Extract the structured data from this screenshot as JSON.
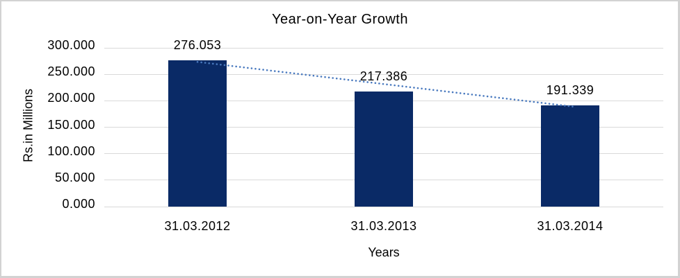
{
  "chart_data": {
    "type": "bar",
    "title": "Year-on-Year Growth",
    "xlabel": "Years",
    "ylabel": "Rs.in Millions",
    "categories": [
      "31.03.2012",
      "31.03.2013",
      "31.03.2014"
    ],
    "values": [
      276.053,
      217.386,
      191.339
    ],
    "data_labels": [
      "276.053",
      "217.386",
      "191.339"
    ],
    "yticks": {
      "values": [
        0,
        50,
        100,
        150,
        200,
        250,
        300
      ],
      "labels": [
        "0.000",
        "50.000",
        "100.000",
        "150.000",
        "200.000",
        "250.000",
        "300.000"
      ]
    },
    "ylim": [
      0,
      300
    ],
    "grid": "horizontal",
    "legend": "none",
    "trendline": {
      "type": "linear",
      "style": "dotted",
      "color": "#4a7abf"
    },
    "bar_color": "#0a2a66",
    "gridline_color": "#d9d9d9",
    "text_color": "#000000",
    "border_color": "#d2d2d2"
  }
}
